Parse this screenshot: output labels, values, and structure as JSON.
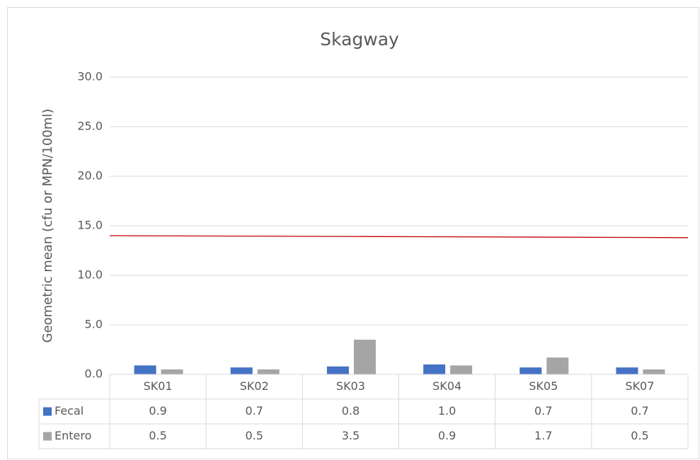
{
  "chart_data": {
    "type": "bar",
    "title": "Skagway",
    "y_label": "Geometric mean (cfu or MPN/100ml)",
    "categories": [
      "SK01",
      "SK02",
      "SK03",
      "SK04",
      "SK05",
      "SK07"
    ],
    "series": [
      {
        "name": "Fecal",
        "color": "#4472c4",
        "values": [
          0.9,
          0.7,
          0.8,
          1.0,
          0.7,
          0.7
        ],
        "value_labels": [
          "0.9",
          "0.7",
          "0.8",
          "1.0",
          "0.7",
          "0.7"
        ]
      },
      {
        "name": "Entero",
        "color": "#a5a5a5",
        "values": [
          0.5,
          0.5,
          3.5,
          0.9,
          1.7,
          0.5
        ],
        "value_labels": [
          "0.5",
          "0.5",
          "3.5",
          "0.9",
          "1.7",
          "0.5"
        ]
      }
    ],
    "reference_line": {
      "color": "#c00000",
      "values": [
        14.0,
        13.8
      ]
    },
    "ylim": [
      0,
      30
    ],
    "yticks": [
      {
        "value": 0,
        "label": "0.0"
      },
      {
        "value": 5,
        "label": "5.0"
      },
      {
        "value": 10,
        "label": "10.0"
      },
      {
        "value": 15,
        "label": "15.0"
      },
      {
        "value": 20,
        "label": "20.0"
      },
      {
        "value": 25,
        "label": "25.0"
      },
      {
        "value": 30,
        "label": "30.0"
      }
    ],
    "grid": true,
    "data_table": true
  }
}
